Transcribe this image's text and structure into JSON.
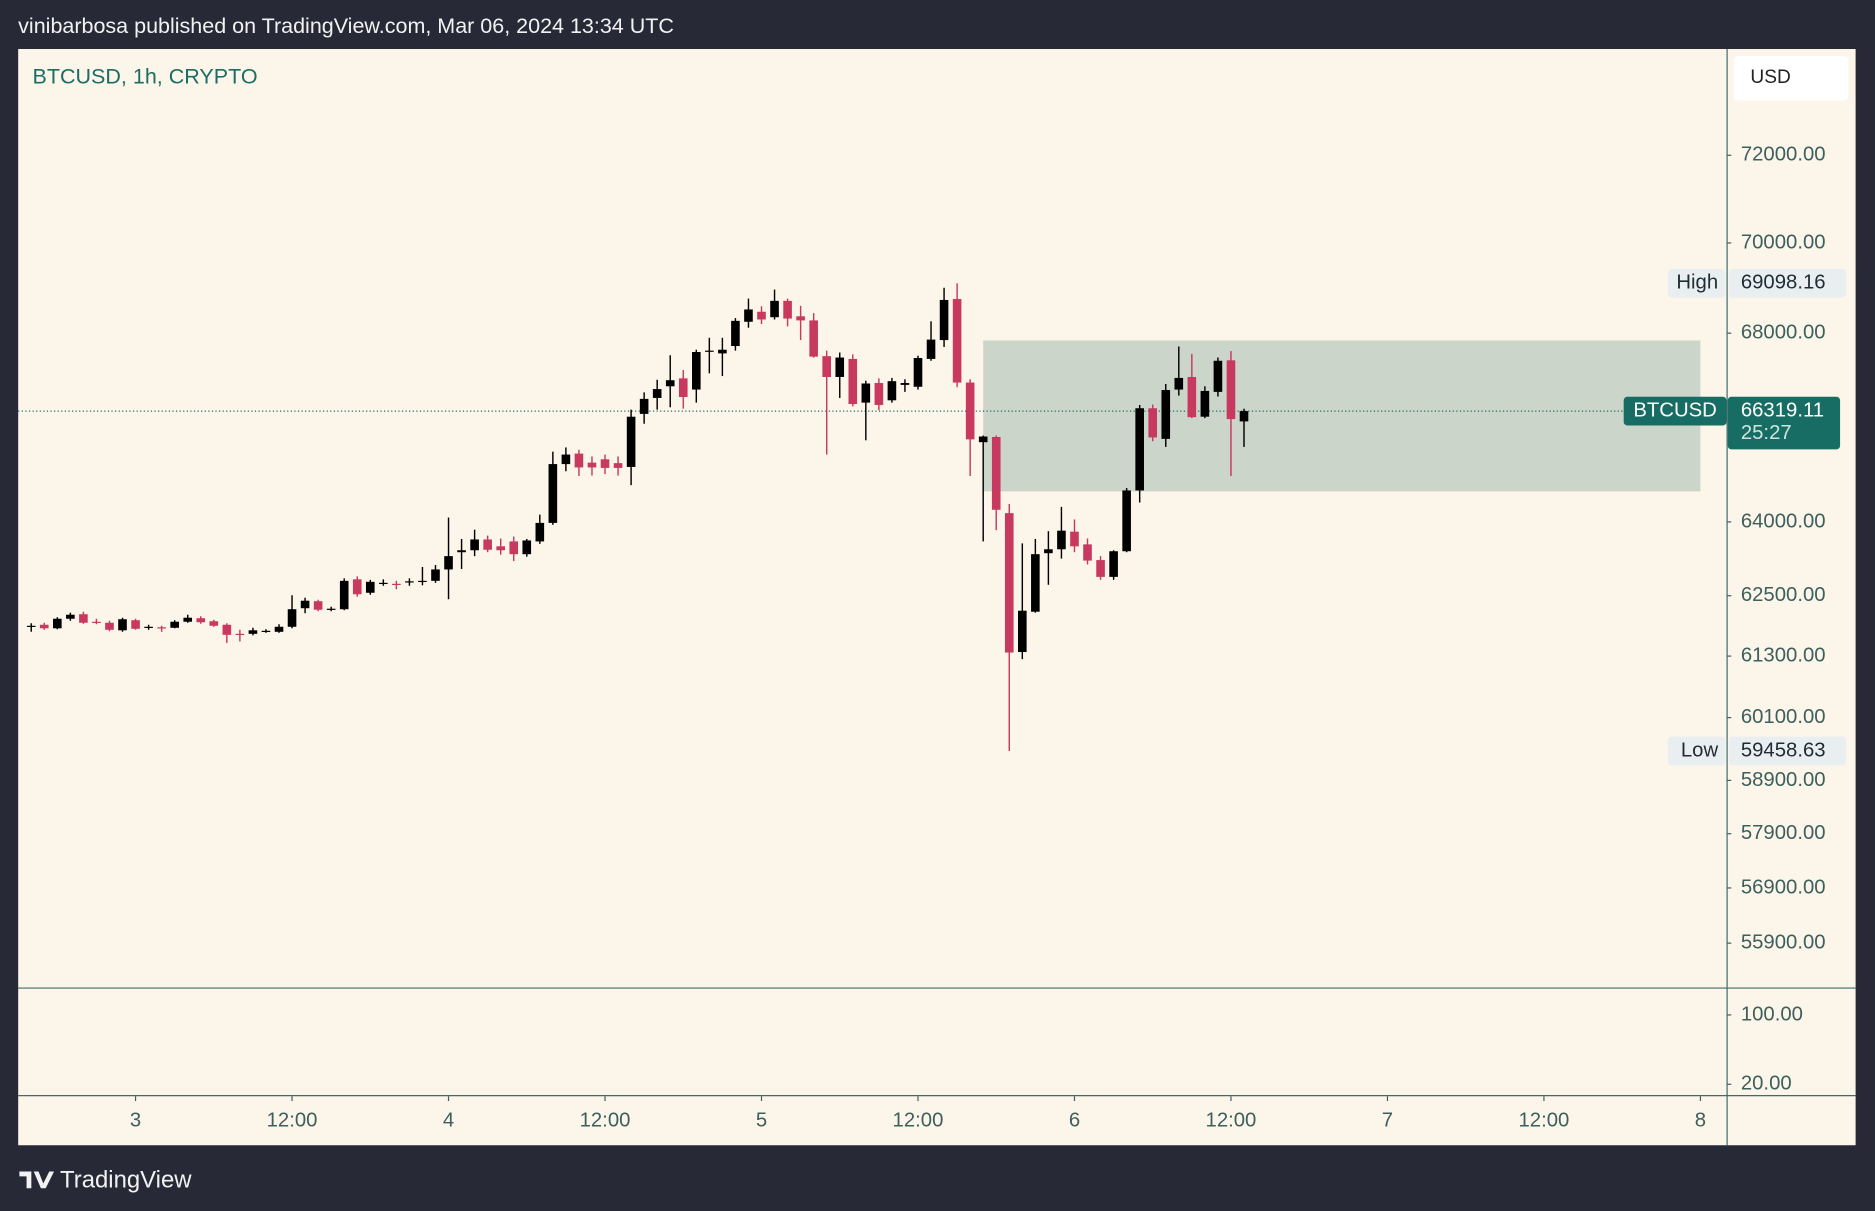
{
  "header": {
    "title": "vinibarbosa published on TradingView.com, Mar 06, 2024 13:34 UTC"
  },
  "footer": {
    "brand": "TradingView"
  },
  "chart_data": {
    "type": "candlestick",
    "title": "BTCUSD, 1h, CRYPTO",
    "currency": "USD",
    "log": true,
    "up_color": "#000000",
    "down_color": "#c8395f",
    "x": [
      "2024-03-02 16:00",
      "2024-03-02 17:00",
      "2024-03-02 18:00",
      "2024-03-02 19:00",
      "2024-03-02 20:00",
      "2024-03-02 21:00",
      "2024-03-02 22:00",
      "2024-03-02 23:00",
      "2024-03-03 00:00",
      "2024-03-03 01:00",
      "2024-03-03 02:00",
      "2024-03-03 03:00",
      "2024-03-03 04:00",
      "2024-03-03 05:00",
      "2024-03-03 06:00",
      "2024-03-03 07:00",
      "2024-03-03 08:00",
      "2024-03-03 09:00",
      "2024-03-03 10:00",
      "2024-03-03 11:00",
      "2024-03-03 12:00",
      "2024-03-03 13:00",
      "2024-03-03 14:00",
      "2024-03-03 15:00",
      "2024-03-03 16:00",
      "2024-03-03 17:00",
      "2024-03-03 18:00",
      "2024-03-03 19:00",
      "2024-03-03 20:00",
      "2024-03-03 21:00",
      "2024-03-03 22:00",
      "2024-03-03 23:00",
      "2024-03-04 00:00",
      "2024-03-04 01:00",
      "2024-03-04 02:00",
      "2024-03-04 03:00",
      "2024-03-04 04:00",
      "2024-03-04 05:00",
      "2024-03-04 06:00",
      "2024-03-04 07:00",
      "2024-03-04 08:00",
      "2024-03-04 09:00",
      "2024-03-04 10:00",
      "2024-03-04 11:00",
      "2024-03-04 12:00",
      "2024-03-04 13:00",
      "2024-03-04 14:00",
      "2024-03-04 15:00",
      "2024-03-04 16:00",
      "2024-03-04 17:00",
      "2024-03-04 18:00",
      "2024-03-04 19:00",
      "2024-03-04 20:00",
      "2024-03-04 21:00",
      "2024-03-04 22:00",
      "2024-03-04 23:00",
      "2024-03-05 00:00",
      "2024-03-05 01:00",
      "2024-03-05 02:00",
      "2024-03-05 03:00",
      "2024-03-05 04:00",
      "2024-03-05 05:00",
      "2024-03-05 06:00",
      "2024-03-05 07:00",
      "2024-03-05 08:00",
      "2024-03-05 09:00",
      "2024-03-05 10:00",
      "2024-03-05 11:00",
      "2024-03-05 12:00",
      "2024-03-05 13:00",
      "2024-03-05 14:00",
      "2024-03-05 15:00",
      "2024-03-05 16:00",
      "2024-03-05 17:00",
      "2024-03-05 18:00",
      "2024-03-05 19:00",
      "2024-03-05 20:00",
      "2024-03-05 21:00",
      "2024-03-05 22:00",
      "2024-03-05 23:00",
      "2024-03-06 00:00",
      "2024-03-06 01:00",
      "2024-03-06 02:00",
      "2024-03-06 03:00",
      "2024-03-06 04:00",
      "2024-03-06 05:00",
      "2024-03-06 06:00",
      "2024-03-06 07:00",
      "2024-03-06 08:00",
      "2024-03-06 09:00",
      "2024-03-06 10:00",
      "2024-03-06 11:00",
      "2024-03-06 12:00",
      "2024-03-06 13:00"
    ],
    "open": [
      61880,
      61920,
      61850,
      62040,
      62130,
      61980,
      61960,
      61810,
      62010,
      61860,
      61870,
      61860,
      61980,
      62050,
      61990,
      61920,
      61740,
      61740,
      61790,
      61780,
      61880,
      62250,
      62390,
      62230,
      62230,
      62830,
      62560,
      62740,
      62740,
      62770,
      62790,
      62800,
      63030,
      63380,
      63420,
      63640,
      63500,
      63600,
      63340,
      63600,
      63980,
      65200,
      65420,
      65230,
      65300,
      65220,
      65140,
      66260,
      66600,
      66850,
      67020,
      66780,
      67600,
      67560,
      67720,
      68250,
      68470,
      68350,
      68710,
      68370,
      68280,
      67500,
      67050,
      67440,
      66500,
      66920,
      66550,
      66880,
      66840,
      67440,
      67850,
      68750,
      66930,
      65660,
      65770,
      64180,
      61380,
      62180,
      63360,
      63440,
      63800,
      63540,
      63220,
      62880,
      63400,
      64650,
      66380,
      65730,
      66780,
      67050,
      66200,
      66730,
      67410,
      66100
    ],
    "high": [
      61950,
      61960,
      62070,
      62160,
      62180,
      62040,
      62000,
      62060,
      62040,
      61920,
      61900,
      62010,
      62120,
      62090,
      62020,
      61950,
      61820,
      61860,
      61830,
      61930,
      62510,
      62460,
      62420,
      62280,
      62850,
      62890,
      62820,
      62830,
      62800,
      62850,
      63080,
      63120,
      64090,
      63650,
      63840,
      63720,
      63660,
      63700,
      63650,
      64150,
      65460,
      65550,
      65500,
      65360,
      65400,
      65360,
      66350,
      66720,
      66990,
      67520,
      67200,
      67640,
      67900,
      67900,
      68330,
      68760,
      68590,
      68960,
      68760,
      68600,
      68440,
      67620,
      67580,
      67540,
      66970,
      67020,
      67030,
      67000,
      67510,
      68260,
      69000,
      69098.16,
      67000,
      65800,
      65800,
      64370,
      63560,
      63650,
      63810,
      64310,
      64050,
      63660,
      63300,
      63420,
      64700,
      66450,
      66460,
      66900,
      67710,
      67550,
      66850,
      67470,
      67610,
      66370
    ],
    "low": [
      61780,
      61820,
      61830,
      62000,
      61940,
      61930,
      61790,
      61780,
      61820,
      61820,
      61780,
      61850,
      61960,
      61940,
      61880,
      61560,
      61590,
      61710,
      61760,
      61760,
      61850,
      62150,
      62190,
      62190,
      62210,
      62480,
      62520,
      62700,
      62630,
      62700,
      62710,
      62760,
      62430,
      63040,
      63300,
      63380,
      63330,
      63200,
      63290,
      63550,
      63940,
      65050,
      64950,
      64960,
      64990,
      64960,
      64760,
      66050,
      66350,
      66400,
      66370,
      66500,
      67130,
      67070,
      67620,
      68120,
      68200,
      68300,
      68150,
      67850,
      67470,
      65400,
      66600,
      66420,
      65700,
      66340,
      66500,
      66730,
      66780,
      67400,
      67700,
      66830,
      64950,
      63600,
      63830,
      59458.63,
      61240,
      62160,
      62720,
      63250,
      63380,
      63130,
      62820,
      62820,
      63380,
      64400,
      65680,
      65560,
      66650,
      66170,
      66170,
      66630,
      64950,
      65560
    ],
    "close": [
      61900,
      61850,
      62040,
      62120,
      61960,
      61970,
      61820,
      62030,
      61840,
      61880,
      61860,
      61980,
      62060,
      61970,
      61900,
      61720,
      61730,
      61810,
      61800,
      61880,
      62230,
      62400,
      62220,
      62240,
      62800,
      62530,
      62780,
      62760,
      62720,
      62790,
      62800,
      63030,
      63300,
      63420,
      63640,
      63430,
      63420,
      63340,
      63620,
      63980,
      65200,
      65400,
      65130,
      65130,
      65120,
      65120,
      66200,
      66580,
      66790,
      66980,
      66620,
      67590,
      67620,
      67640,
      68270,
      68520,
      68300,
      68710,
      68320,
      68280,
      67490,
      67050,
      67470,
      66470,
      66910,
      66450,
      66960,
      66920,
      67460,
      67860,
      68730,
      66930,
      65720,
      65780,
      64250,
      61370,
      62200,
      63340,
      63440,
      63820,
      63500,
      63210,
      62880,
      63400,
      64650,
      66380,
      65760,
      66770,
      67030,
      66190,
      66750,
      67400,
      66150,
      66319.11
    ],
    "xlim": [
      "2024-03-02 15:00",
      "2024-03-08 02:00"
    ],
    "xticks": [
      {
        "value": "2024-03-03 00:00",
        "label": "3"
      },
      {
        "value": "2024-03-03 12:00",
        "label": "12:00"
      },
      {
        "value": "2024-03-04 00:00",
        "label": "4"
      },
      {
        "value": "2024-03-04 12:00",
        "label": "12:00"
      },
      {
        "value": "2024-03-05 00:00",
        "label": "5"
      },
      {
        "value": "2024-03-05 12:00",
        "label": "12:00"
      },
      {
        "value": "2024-03-06 00:00",
        "label": "6"
      },
      {
        "value": "2024-03-06 12:00",
        "label": "12:00"
      },
      {
        "value": "2024-03-07 00:00",
        "label": "7"
      },
      {
        "value": "2024-03-07 12:00",
        "label": "12:00"
      },
      {
        "value": "2024-03-08 00:00",
        "label": "8"
      }
    ],
    "ylim": [
      55110,
      74500
    ],
    "yticks": [
      {
        "value": 72000,
        "label": "72000.00"
      },
      {
        "value": 70000,
        "label": "70000.00"
      },
      {
        "value": 68000,
        "label": "68000.00"
      },
      {
        "value": 64000,
        "label": "64000.00"
      },
      {
        "value": 62500,
        "label": "62500.00"
      },
      {
        "value": 61300,
        "label": "61300.00"
      },
      {
        "value": 60100,
        "label": "60100.00"
      },
      {
        "value": 58900,
        "label": "58900.00"
      },
      {
        "value": 57900,
        "label": "57900.00"
      },
      {
        "value": 56900,
        "label": "56900.00"
      },
      {
        "value": 55900,
        "label": "55900.00"
      }
    ],
    "high_marker": {
      "label": "High",
      "value": 69098.16
    },
    "low_marker": {
      "label": "Low",
      "value": 59458.63
    },
    "last_price": {
      "label": "BTCUSD",
      "value": 66319.11,
      "countdown": "25:27",
      "color": "#176d63"
    },
    "zone": {
      "x": [
        "2024-03-05 17:00",
        "2024-03-08 00:00"
      ],
      "y": [
        64630,
        67840
      ],
      "color": "#c5d2c6"
    },
    "indicator_pane": {
      "ylim": [
        7.6,
        131.7
      ],
      "yticks": [
        {
          "value": 100,
          "label": "100.00"
        },
        {
          "value": 20,
          "label": "20.00"
        }
      ]
    }
  }
}
